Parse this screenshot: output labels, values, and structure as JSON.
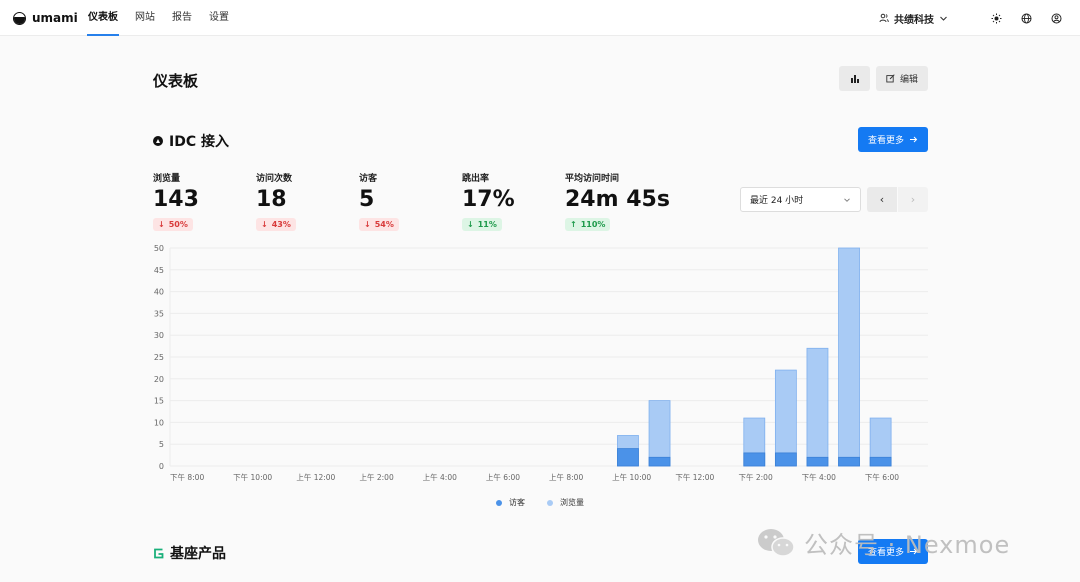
{
  "app": {
    "name": "umami"
  },
  "nav": {
    "items": [
      {
        "label": "仪表板",
        "active": true
      },
      {
        "label": "网站",
        "active": false
      },
      {
        "label": "报告",
        "active": false
      },
      {
        "label": "设置",
        "active": false
      }
    ]
  },
  "header": {
    "team": "共绩科技",
    "icons": [
      "team-icon",
      "chevron-down-icon",
      "sun-icon",
      "globe-icon",
      "profile-icon"
    ]
  },
  "page": {
    "title": "仪表板",
    "edit_label": "编辑"
  },
  "website": {
    "name": "IDC 接入",
    "more_label": "查看更多",
    "metrics": [
      {
        "label": "浏览量",
        "value": "143",
        "change": "50%",
        "direction": "down"
      },
      {
        "label": "访问次数",
        "value": "18",
        "change": "43%",
        "direction": "down"
      },
      {
        "label": "访客",
        "value": "5",
        "change": "54%",
        "direction": "down"
      },
      {
        "label": "跳出率",
        "value": "17%",
        "change": "11%",
        "direction": "up"
      },
      {
        "label": "平均访问时间",
        "value": "24m 45s",
        "change": "110%",
        "direction": "up"
      }
    ],
    "range": "最近 24 小时"
  },
  "chart_data": {
    "type": "bar",
    "stacked": true,
    "x": [
      "下午 8:00",
      "下午 9:00",
      "下午 10:00",
      "下午 11:00",
      "上午 12:00",
      "上午 1:00",
      "上午 2:00",
      "上午 3:00",
      "上午 4:00",
      "上午 5:00",
      "上午 6:00",
      "上午 7:00",
      "上午 8:00",
      "上午 9:00",
      "上午 10:00",
      "上午 11:00",
      "下午 12:00",
      "下午 1:00",
      "下午 2:00",
      "下午 3:00",
      "下午 4:00",
      "下午 5:00",
      "下午 6:00",
      "下午 7:00"
    ],
    "tick_labels": [
      "下午 8:00",
      "下午 10:00",
      "上午 12:00",
      "上午 2:00",
      "上午 4:00",
      "上午 6:00",
      "上午 8:00",
      "上午 10:00",
      "下午 12:00",
      "下午 2:00",
      "下午 4:00",
      "下午 6:00"
    ],
    "series": [
      {
        "name": "访客",
        "color": "#4b92e8",
        "values": [
          0,
          0,
          0,
          0,
          0,
          0,
          0,
          0,
          0,
          0,
          0,
          0,
          0,
          0,
          4,
          2,
          0,
          0,
          3,
          3,
          2,
          2,
          2,
          0
        ]
      },
      {
        "name": "浏览量",
        "color": "#a9cbf5",
        "values": [
          0,
          0,
          0,
          0,
          0,
          0,
          0,
          0,
          0,
          0,
          0,
          0,
          0,
          0,
          7,
          15,
          0,
          0,
          11,
          22,
          27,
          50,
          11,
          0
        ]
      }
    ],
    "ylim": [
      0,
      50
    ],
    "yticks": [
      0,
      5,
      10,
      15,
      20,
      25,
      30,
      35,
      40,
      45,
      50
    ],
    "grid": true,
    "legend": "bottom"
  },
  "section2": {
    "name": "基座产品",
    "more_label": "查看更多"
  },
  "watermark": {
    "text": "公众号 · Nexmoe"
  }
}
